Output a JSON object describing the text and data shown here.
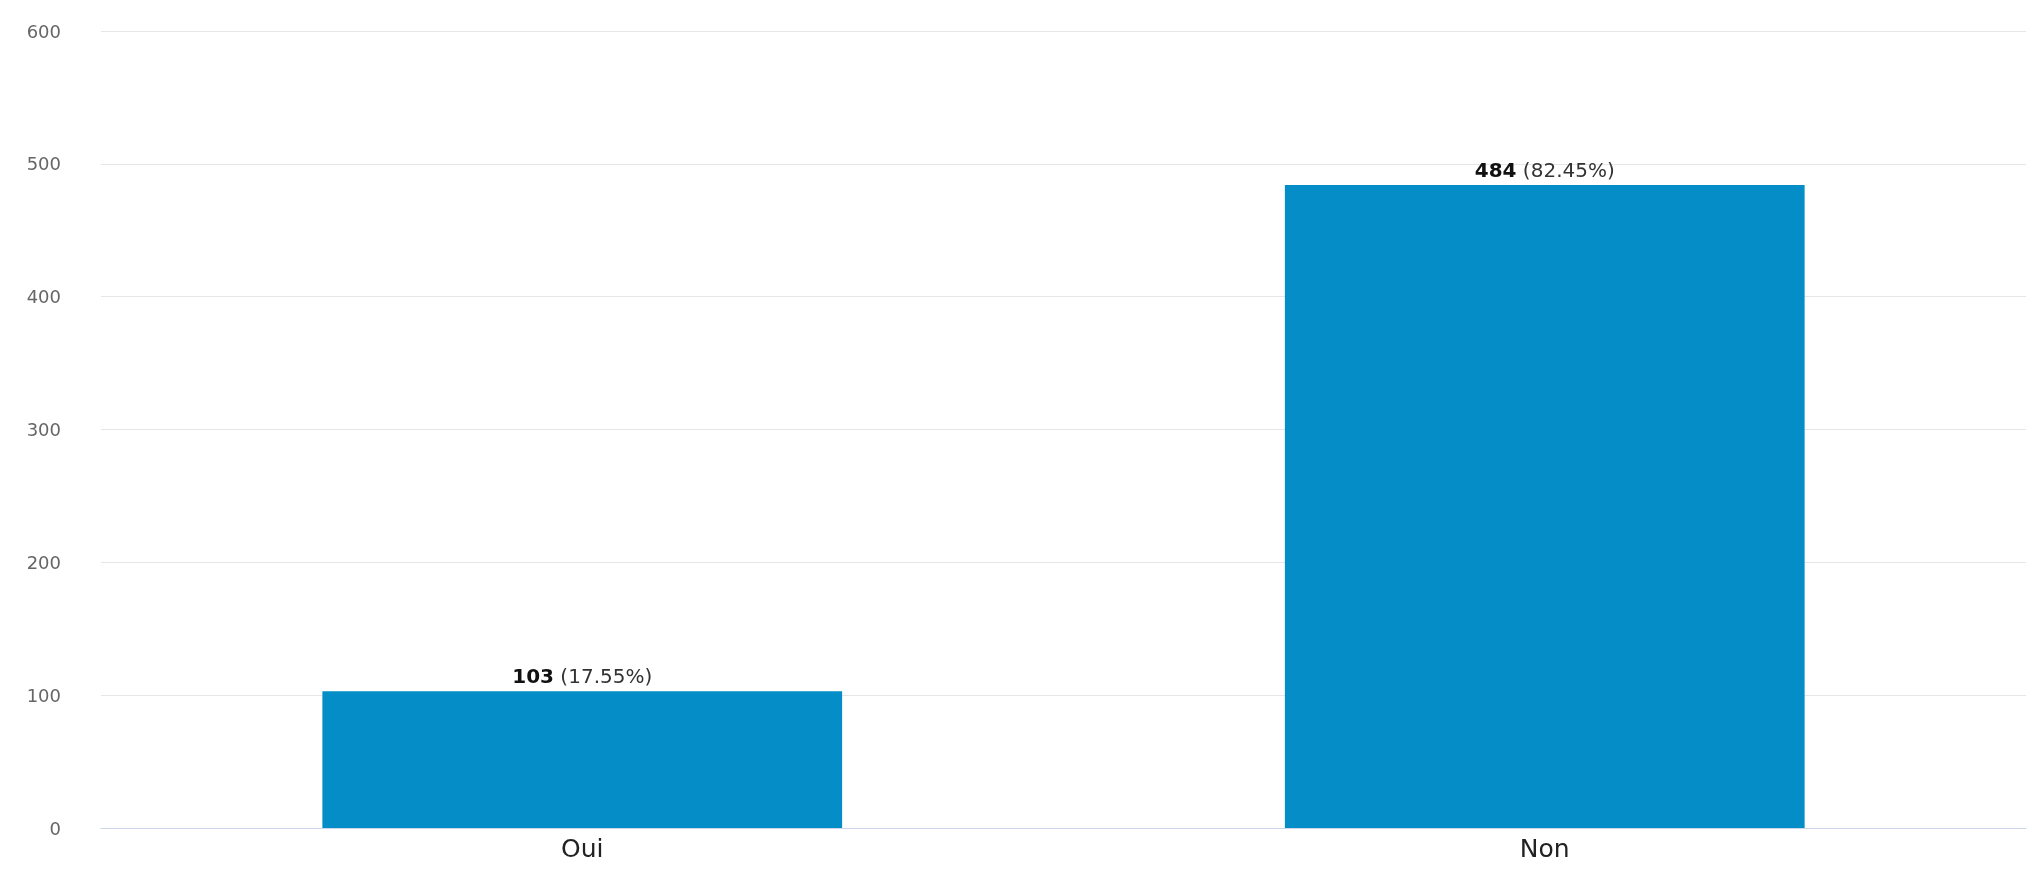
{
  "chart_data": {
    "type": "bar",
    "categories": [
      "Oui",
      "Non"
    ],
    "values": [
      103,
      484
    ],
    "color": "#058dc7",
    "value_labels": [
      "103 (17.55%)",
      "484 (82.45%)"
    ],
    "ylim": [
      0,
      600
    ],
    "yticks": [
      0,
      100,
      200,
      300,
      400,
      500,
      600
    ],
    "grid": "y"
  }
}
